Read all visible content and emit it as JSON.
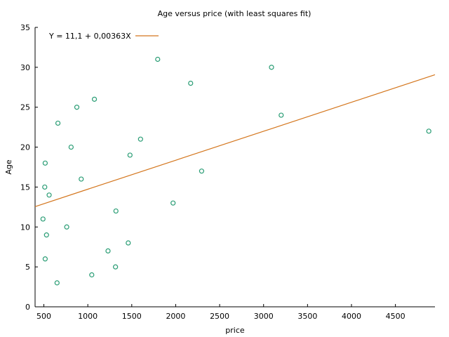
{
  "chart_data": {
    "type": "scatter",
    "title": "Age versus price (with least squares fit)",
    "xlabel": "price",
    "ylabel": "Age",
    "xlim": [
      400,
      4950
    ],
    "ylim": [
      0,
      35
    ],
    "xticks": [
      500,
      1000,
      1500,
      2000,
      2500,
      3000,
      3500,
      4000,
      4500
    ],
    "yticks": [
      0,
      5,
      10,
      15,
      20,
      25,
      30,
      35
    ],
    "grid": false,
    "legend_position": "top-left",
    "colors": {
      "points": "#2a9d75",
      "fit": "#d4761d",
      "axes": "#000000"
    },
    "points": [
      {
        "x": 490,
        "y": 11
      },
      {
        "x": 510,
        "y": 15
      },
      {
        "x": 515,
        "y": 18
      },
      {
        "x": 515,
        "y": 6
      },
      {
        "x": 530,
        "y": 9
      },
      {
        "x": 560,
        "y": 14
      },
      {
        "x": 650,
        "y": 3
      },
      {
        "x": 660,
        "y": 23
      },
      {
        "x": 760,
        "y": 10
      },
      {
        "x": 810,
        "y": 20
      },
      {
        "x": 875,
        "y": 25
      },
      {
        "x": 925,
        "y": 16
      },
      {
        "x": 1045,
        "y": 4
      },
      {
        "x": 1075,
        "y": 26
      },
      {
        "x": 1230,
        "y": 7
      },
      {
        "x": 1315,
        "y": 5
      },
      {
        "x": 1320,
        "y": 12
      },
      {
        "x": 1460,
        "y": 8
      },
      {
        "x": 1480,
        "y": 19
      },
      {
        "x": 1600,
        "y": 21
      },
      {
        "x": 1795,
        "y": 31
      },
      {
        "x": 1970,
        "y": 13
      },
      {
        "x": 2170,
        "y": 28
      },
      {
        "x": 2295,
        "y": 17
      },
      {
        "x": 3090,
        "y": 30
      },
      {
        "x": 3200,
        "y": 24
      },
      {
        "x": 4880,
        "y": 22
      }
    ],
    "fit": {
      "intercept": 11.1,
      "slope": 0.00363,
      "label": "Y = 11,1 + 0,00363X"
    }
  }
}
